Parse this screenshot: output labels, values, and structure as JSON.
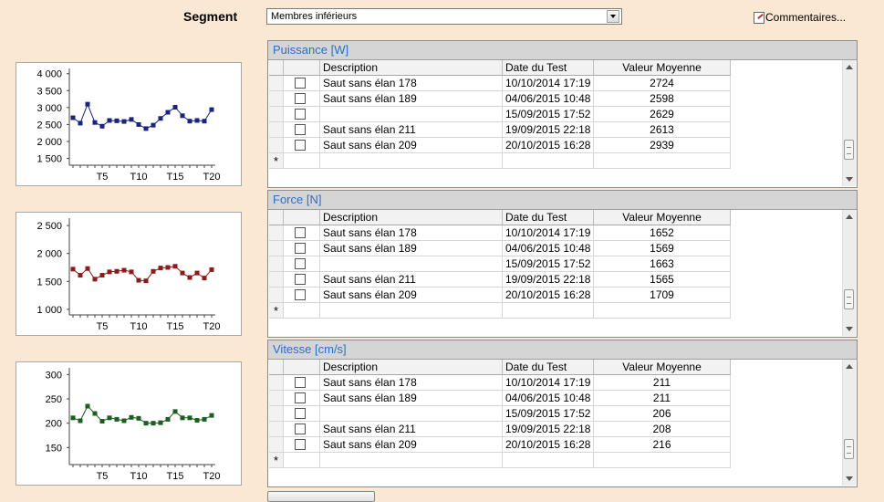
{
  "segment": {
    "label": "Segment",
    "selected": "Membres inférieurs"
  },
  "comments_label": "Commentaires...",
  "columns": {
    "description": "Description",
    "date": "Date du Test",
    "value": "Valeur Moyenne"
  },
  "new_row_marker": "*",
  "icons": {
    "dropdown": "chevron-down-icon",
    "comments": "comment-icon",
    "scroll_up": "arrow-up-icon",
    "scroll_down": "arrow-down-icon"
  },
  "panels": [
    {
      "title": "Puissance [W]",
      "rows": [
        {
          "description": "Saut sans élan 178",
          "date": "10/10/2014 17:19",
          "value": "2724"
        },
        {
          "description": "Saut sans élan 189",
          "date": "04/06/2015 10:48",
          "value": "2598"
        },
        {
          "description": "",
          "date": "15/09/2015 17:52",
          "value": "2629"
        },
        {
          "description": "Saut sans élan 211",
          "date": "19/09/2015 22:18",
          "value": "2613"
        },
        {
          "description": "Saut sans élan 209",
          "date": "20/10/2015 16:28",
          "value": "2939"
        }
      ]
    },
    {
      "title": "Force [N]",
      "rows": [
        {
          "description": "Saut sans élan 178",
          "date": "10/10/2014 17:19",
          "value": "1652"
        },
        {
          "description": "Saut sans élan 189",
          "date": "04/06/2015 10:48",
          "value": "1569"
        },
        {
          "description": "",
          "date": "15/09/2015 17:52",
          "value": "1663"
        },
        {
          "description": "Saut sans élan 211",
          "date": "19/09/2015 22:18",
          "value": "1565"
        },
        {
          "description": "Saut sans élan 209",
          "date": "20/10/2015 16:28",
          "value": "1709"
        }
      ]
    },
    {
      "title": "Vitesse [cm/s]",
      "rows": [
        {
          "description": "Saut sans élan 178",
          "date": "10/10/2014 17:19",
          "value": "211"
        },
        {
          "description": "Saut sans élan 189",
          "date": "04/06/2015 10:48",
          "value": "211"
        },
        {
          "description": "",
          "date": "15/09/2015 17:52",
          "value": "206"
        },
        {
          "description": "Saut sans élan 211",
          "date": "19/09/2015 22:18",
          "value": "208"
        },
        {
          "description": "Saut sans élan 209",
          "date": "20/10/2015 16:28",
          "value": "216"
        }
      ]
    }
  ],
  "chart_data": [
    {
      "type": "line",
      "color": "#1a237e",
      "x_tick_labels": [
        "T5",
        "T10",
        "T15",
        "T20"
      ],
      "y_tick_labels": [
        "4 000",
        "3 500",
        "3 000",
        "2 500",
        "2 000",
        "1 500"
      ],
      "y_ticks": [
        4000,
        3500,
        3000,
        2500,
        2000,
        1500
      ],
      "ylim": [
        1300,
        4100
      ],
      "x": [
        1,
        2,
        3,
        4,
        5,
        6,
        7,
        8,
        9,
        10,
        11,
        12,
        13,
        14,
        15,
        16,
        17,
        18,
        19,
        20
      ],
      "values": [
        2700,
        2540,
        3100,
        2560,
        2450,
        2620,
        2610,
        2590,
        2650,
        2500,
        2380,
        2480,
        2680,
        2860,
        3010,
        2760,
        2600,
        2620,
        2600,
        2940
      ]
    },
    {
      "type": "line",
      "color": "#8b1a1a",
      "x_tick_labels": [
        "T5",
        "T10",
        "T15",
        "T20"
      ],
      "y_tick_labels": [
        "2 500",
        "2 000",
        "1 500",
        "1 000"
      ],
      "y_ticks": [
        2500,
        2000,
        1500,
        1000
      ],
      "ylim": [
        900,
        2600
      ],
      "x": [
        1,
        2,
        3,
        4,
        5,
        6,
        7,
        8,
        9,
        10,
        11,
        12,
        13,
        14,
        15,
        16,
        17,
        18,
        19,
        20
      ],
      "values": [
        1720,
        1610,
        1730,
        1540,
        1610,
        1670,
        1680,
        1700,
        1670,
        1520,
        1510,
        1680,
        1740,
        1750,
        1770,
        1650,
        1570,
        1650,
        1560,
        1710
      ]
    },
    {
      "type": "line",
      "color": "#1b5e20",
      "x_tick_labels": [
        "T5",
        "T10",
        "T15",
        "T20"
      ],
      "y_tick_labels": [
        "300",
        "250",
        "200",
        "150"
      ],
      "y_ticks": [
        300,
        250,
        200,
        150
      ],
      "ylim": [
        115,
        310
      ],
      "x": [
        1,
        2,
        3,
        4,
        5,
        6,
        7,
        8,
        9,
        10,
        11,
        12,
        13,
        14,
        15,
        16,
        17,
        18,
        19,
        20
      ],
      "values": [
        211,
        205,
        235,
        220,
        204,
        211,
        208,
        205,
        212,
        210,
        200,
        200,
        201,
        208,
        224,
        211,
        211,
        206,
        208,
        216
      ]
    }
  ]
}
